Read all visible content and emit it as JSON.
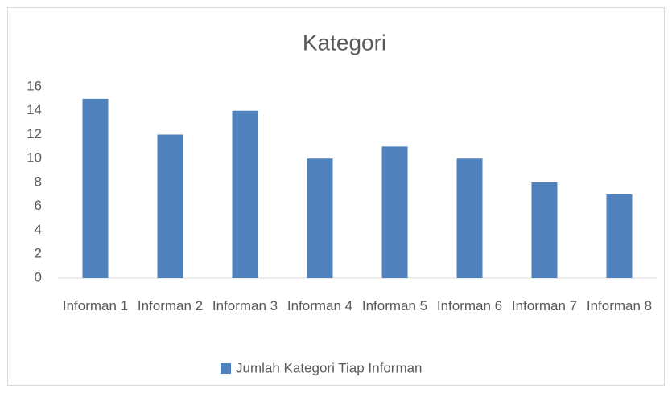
{
  "chart_data": {
    "type": "bar",
    "title": "Kategori",
    "categories": [
      "Informan 1",
      "Informan 2",
      "Informan 3",
      "Informan 4",
      "Informan 5",
      "Informan 6",
      "Informan 7",
      "Informan 8"
    ],
    "series": [
      {
        "name": "Jumlah Kategori Tiap Informan",
        "color": "#4f81bd",
        "values": [
          15,
          12,
          14,
          10,
          11,
          10,
          8,
          7
        ]
      }
    ],
    "ylim": [
      0,
      16
    ],
    "yticks": [
      0,
      2,
      4,
      6,
      8,
      10,
      12,
      14,
      16
    ],
    "grid": false,
    "legend": "bottom"
  }
}
